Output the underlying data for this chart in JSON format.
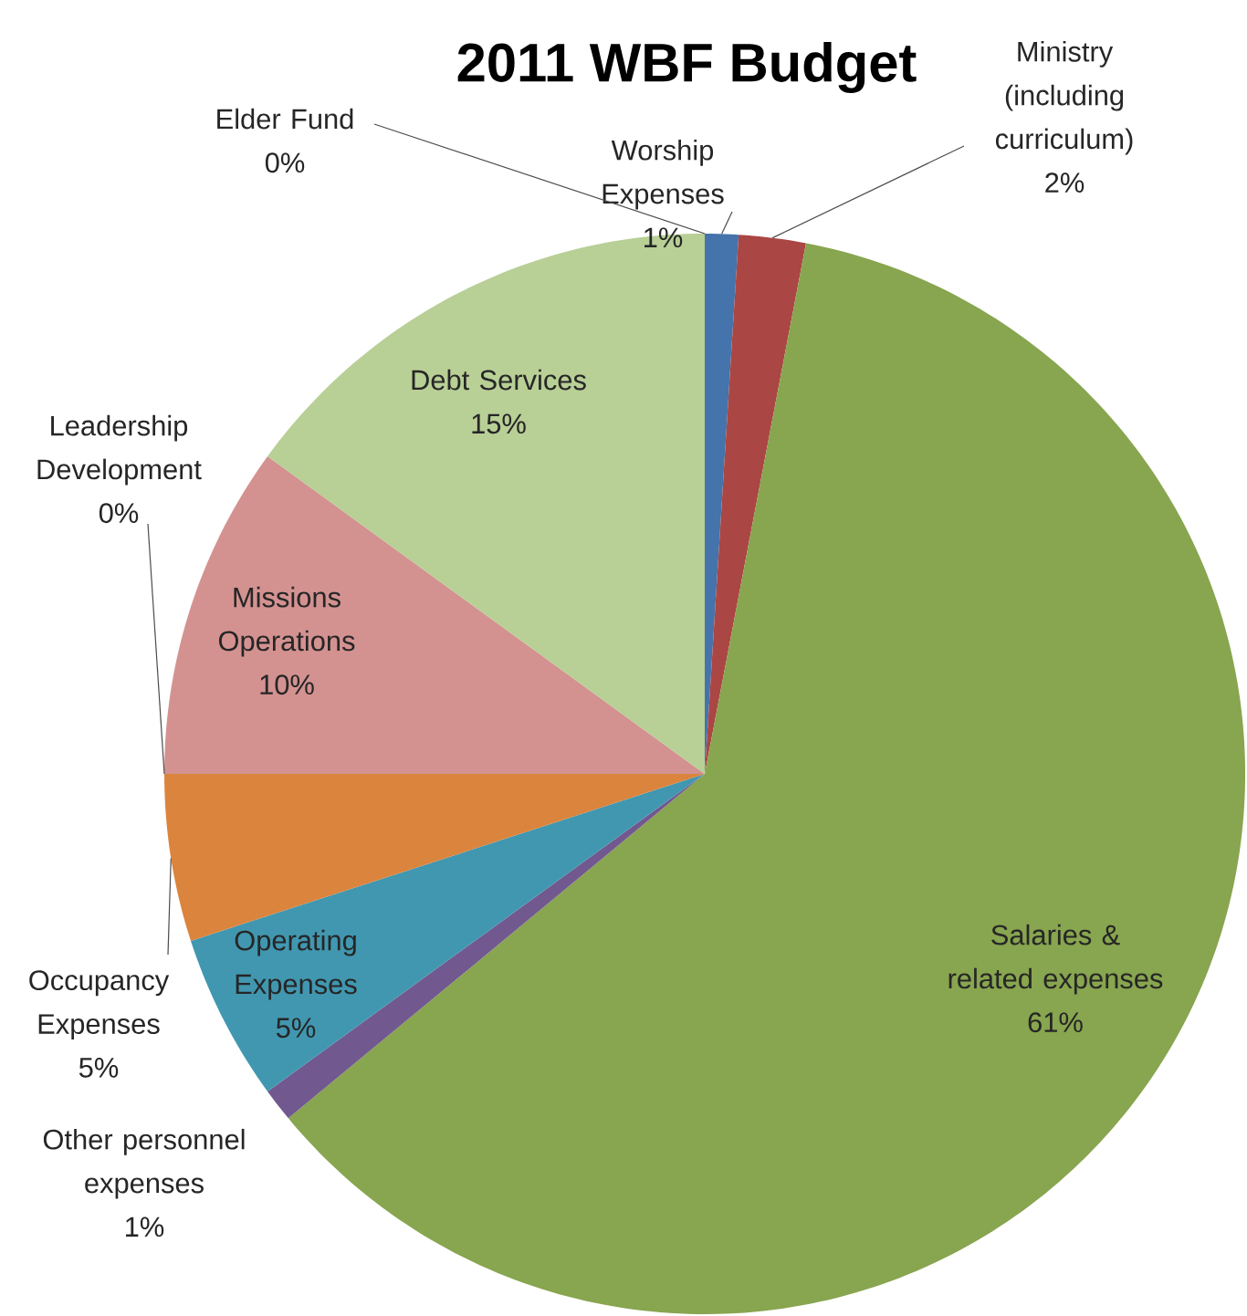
{
  "chart_data": {
    "type": "pie",
    "title": "2011 WBF Budget",
    "categories": [
      "Worship Expenses",
      "Ministry (including curriculum)",
      "Salaries & related expenses",
      "Other personnel expenses",
      "Operating Expenses",
      "Occupancy Expenses",
      "Leadership Development",
      "Missions Operations",
      "Debt Services",
      "Elder Fund"
    ],
    "values": [
      1,
      2,
      61,
      1,
      5,
      5,
      0,
      10,
      15,
      0
    ],
    "value_labels": [
      "1%",
      "2%",
      "61%",
      "1%",
      "5%",
      "5%",
      "0%",
      "10%",
      "15%",
      "0%"
    ],
    "colors": [
      "#4573ab",
      "#aa4644",
      "#88a54f",
      "#71588f",
      "#4197b0",
      "#db843d",
      "#93a9d0",
      "#d39290",
      "#b8cf96",
      "#4f81bd"
    ]
  }
}
